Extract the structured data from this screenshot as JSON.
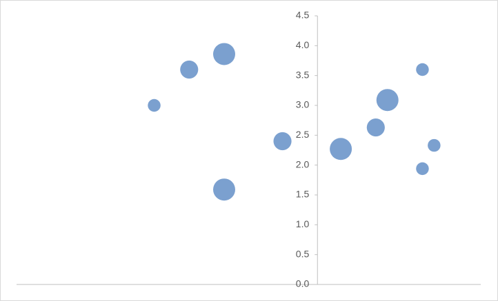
{
  "chart_data": {
    "type": "bubble",
    "x": [
      -14,
      -11,
      -8,
      -8,
      -3,
      2,
      5,
      6,
      9,
      9,
      10
    ],
    "y": [
      3.0,
      3.6,
      3.86,
      1.59,
      2.4,
      2.27,
      2.63,
      3.09,
      3.6,
      1.94,
      2.33
    ],
    "sizes": [
      1,
      2,
      3,
      3,
      2,
      3,
      2,
      3,
      1,
      1,
      1
    ],
    "color": "#7ba0cf",
    "xlim": [
      -25.8,
      14
    ],
    "ylim": [
      0,
      4.5
    ],
    "yticks": [
      {
        "value": 0,
        "label": "0.0"
      },
      {
        "value": 0.5,
        "label": "0.5"
      },
      {
        "value": 1,
        "label": "1.0"
      },
      {
        "value": 1.5,
        "label": "1.5"
      },
      {
        "value": 2,
        "label": "2.0"
      },
      {
        "value": 2.5,
        "label": "2.5"
      },
      {
        "value": 3,
        "label": "3.0"
      },
      {
        "value": 3.5,
        "label": "3.5"
      },
      {
        "value": 4,
        "label": "4.0"
      },
      {
        "value": 4.5,
        "label": "4.5"
      }
    ]
  }
}
